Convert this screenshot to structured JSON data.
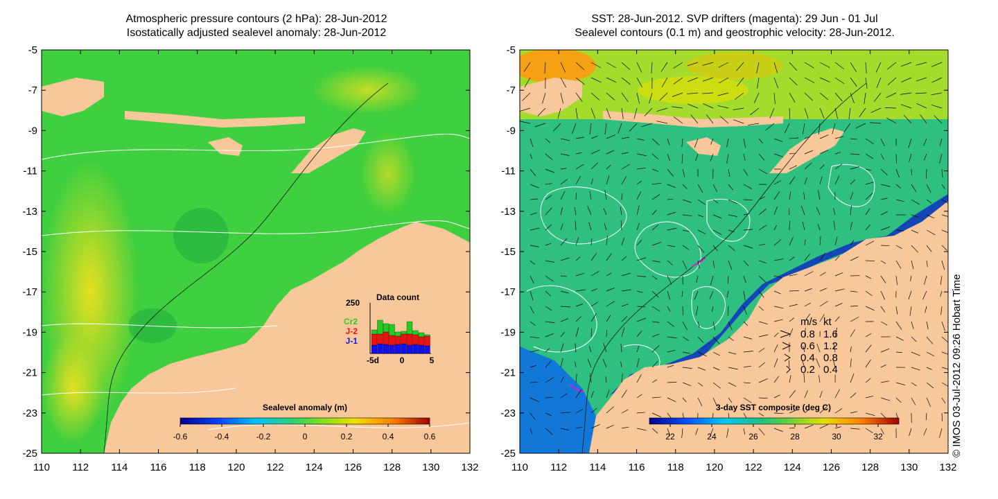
{
  "left_panel": {
    "title_line1": "Atmospheric pressure contours (2 hPa): 28-Jun-2012",
    "title_line2": "Isostatically adjusted sealevel anomaly: 28-Jun-2012",
    "colorbar": {
      "title": "Sealevel anomaly (m)",
      "ticks": [
        "-0.6",
        "-0.4",
        "-0.2",
        "0",
        "0.2",
        "0.4",
        "0.6"
      ]
    },
    "data_count": {
      "title": "Data count",
      "ymax_label": "250",
      "x_ticks": [
        "-5d",
        "0",
        "5"
      ],
      "satellites": [
        {
          "name": "Cr2",
          "color": "#22cc22"
        },
        {
          "name": "J-2",
          "color": "#ee1111"
        },
        {
          "name": "J-1",
          "color": "#1111ee"
        }
      ]
    }
  },
  "right_panel": {
    "title_line1": "SST: 28-Jun-2012. SVP drifters (magenta): 29 Jun - 01 Jul",
    "title_line2": "Sealevel contours (0.1 m) and geostrophic velocity: 28-Jun-2012.",
    "colorbar": {
      "title": "3-day SST composite (deg C)",
      "ticks": [
        "22",
        "24",
        "26",
        "28",
        "30",
        "32"
      ]
    },
    "velocity_legend": {
      "header_ms": "m/s",
      "header_kt": "kt",
      "rows": [
        {
          "ms": "0.8",
          "kt": "1.6"
        },
        {
          "ms": "0.6",
          "kt": "1.2"
        },
        {
          "ms": "0.4",
          "kt": "0.8"
        },
        {
          "ms": "0.2",
          "kt": "0.4"
        }
      ]
    }
  },
  "axes": {
    "y_ticks": [
      "-5",
      "-7",
      "-9",
      "-11",
      "-13",
      "-15",
      "-17",
      "-19",
      "-21",
      "-23",
      "-25"
    ],
    "x_ticks": [
      "110",
      "112",
      "114",
      "116",
      "118",
      "120",
      "122",
      "124",
      "126",
      "128",
      "130",
      "132"
    ]
  },
  "credit": "© IMOS 03-Jul-2012 09:26 Hobart Time",
  "colors": {
    "land": "#f9c89a",
    "ocean_left": "#3fcf3f",
    "ocean_right": "#2fc081"
  }
}
